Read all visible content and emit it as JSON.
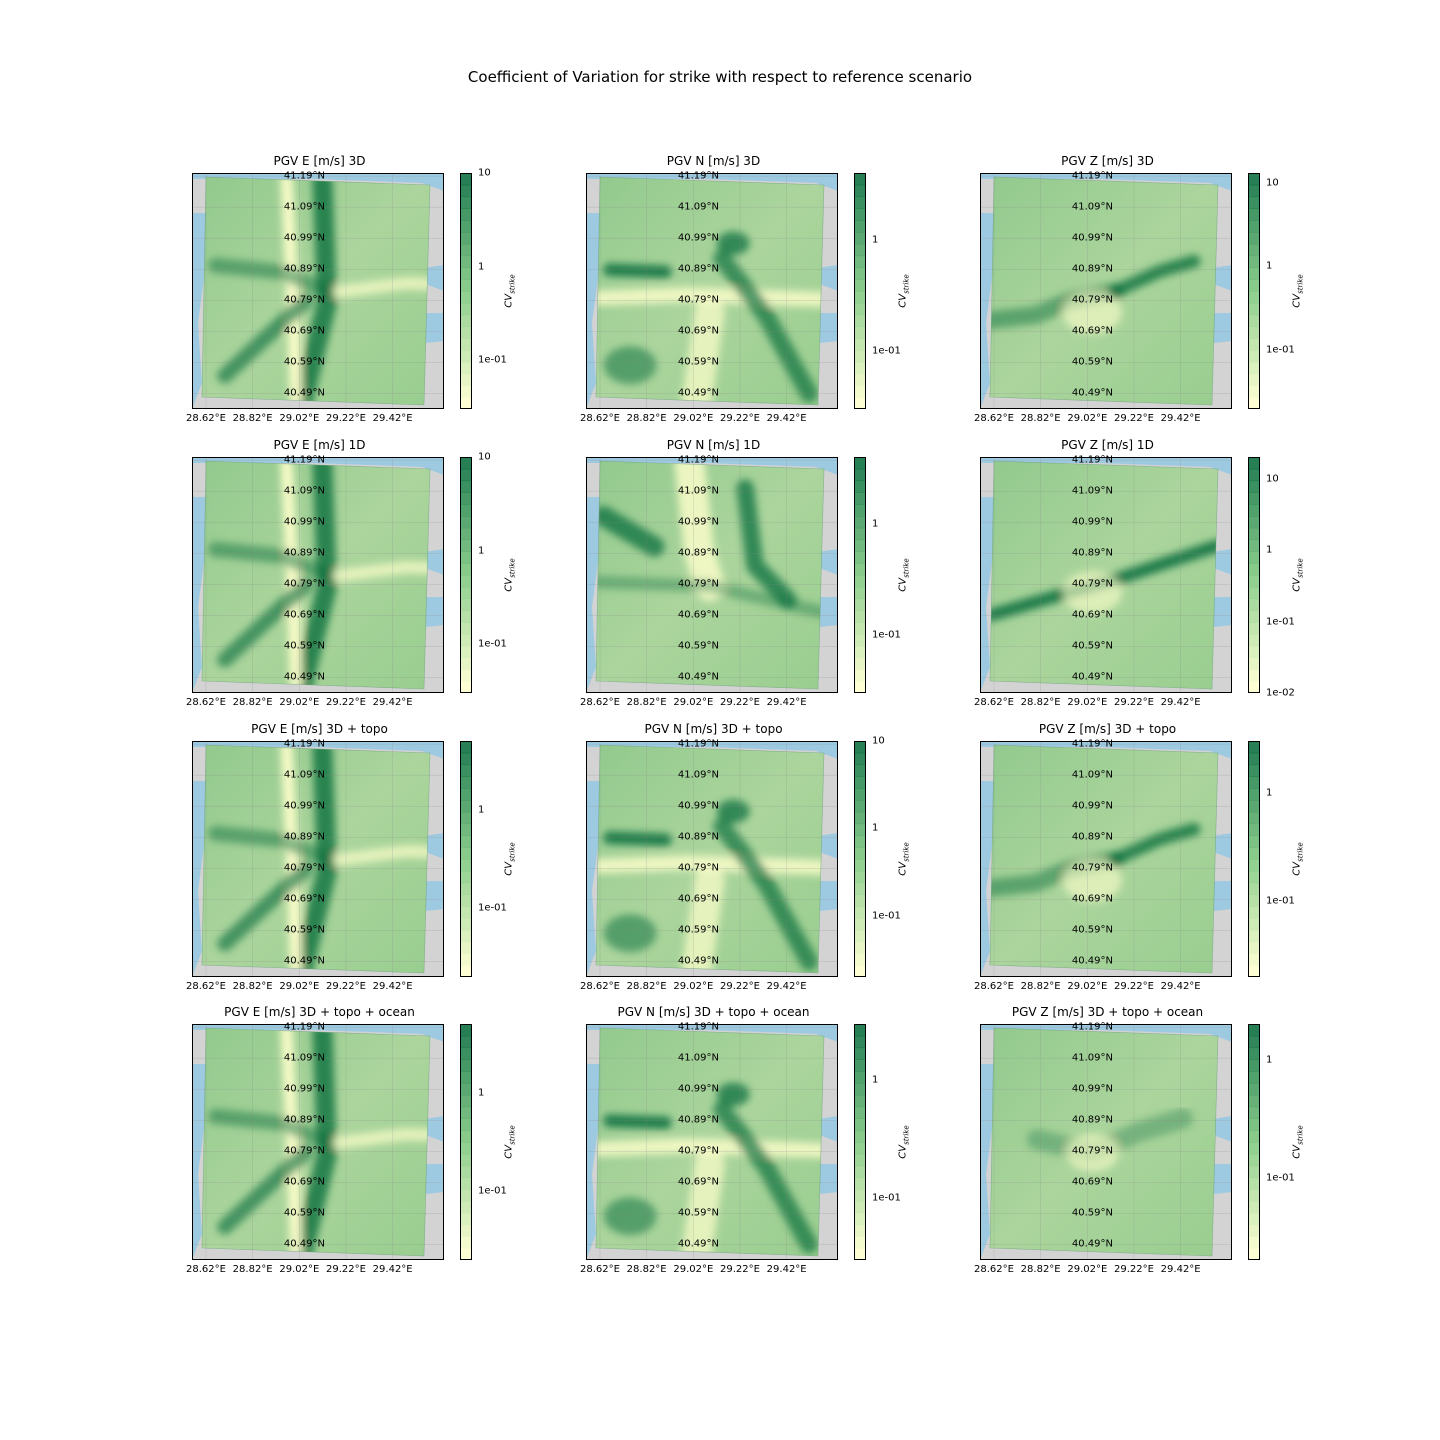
{
  "figure_title": "Coefficient of Variation for strike with respect to reference scenario",
  "colors": {
    "sea": "#9ecae1",
    "land": "#d3d3d3",
    "cmap_low": "#ffffcc",
    "cmap_mid": "#78c679",
    "cmap_high": "#006837"
  },
  "chart_data": [
    {
      "type": "heatmap",
      "title": "PGV E [m/s] 3D",
      "colorbar_label": "CV",
      "colorbar_sub": "strike",
      "colorbar_ticks": [
        "10",
        "1",
        "1e-01"
      ],
      "colorbar_tick_values": [
        10,
        1,
        0.1
      ],
      "colorbar_range": [
        0.03,
        10
      ],
      "pattern": "E"
    },
    {
      "type": "heatmap",
      "title": "PGV N [m/s] 3D",
      "colorbar_label": "CV",
      "colorbar_sub": "strike",
      "colorbar_ticks": [
        "1",
        "1e-01"
      ],
      "colorbar_tick_values": [
        1,
        0.1
      ],
      "colorbar_range": [
        0.03,
        4
      ],
      "pattern": "N"
    },
    {
      "type": "heatmap",
      "title": "PGV Z [m/s] 3D",
      "colorbar_label": "CV",
      "colorbar_sub": "strike",
      "colorbar_ticks": [
        "10",
        "1",
        "1e-01"
      ],
      "colorbar_tick_values": [
        10,
        1,
        0.1
      ],
      "colorbar_range": [
        0.02,
        13
      ],
      "pattern": "Z"
    },
    {
      "type": "heatmap",
      "title": "PGV E [m/s] 1D",
      "colorbar_label": "CV",
      "colorbar_sub": "strike",
      "colorbar_ticks": [
        "10",
        "1",
        "1e-01"
      ],
      "colorbar_tick_values": [
        10,
        1,
        0.1
      ],
      "colorbar_range": [
        0.03,
        10
      ],
      "pattern": "E"
    },
    {
      "type": "heatmap",
      "title": "PGV N [m/s] 1D",
      "colorbar_label": "CV",
      "colorbar_sub": "strike",
      "colorbar_ticks": [
        "1",
        "1e-01"
      ],
      "colorbar_tick_values": [
        1,
        0.1
      ],
      "colorbar_range": [
        0.03,
        4
      ],
      "pattern": "N1"
    },
    {
      "type": "heatmap",
      "title": "PGV Z [m/s] 1D",
      "colorbar_label": "CV",
      "colorbar_sub": "strike",
      "colorbar_ticks": [
        "10",
        "1",
        "1e-01",
        "1e-02"
      ],
      "colorbar_tick_values": [
        10,
        1,
        0.1,
        0.01
      ],
      "colorbar_range": [
        0.01,
        20
      ],
      "pattern": "Z1"
    },
    {
      "type": "heatmap",
      "title": "PGV E [m/s] 3D + topo",
      "colorbar_label": "CV",
      "colorbar_sub": "strike",
      "colorbar_ticks": [
        "1",
        "1e-01"
      ],
      "colorbar_tick_values": [
        1,
        0.1
      ],
      "colorbar_range": [
        0.02,
        5
      ],
      "pattern": "E"
    },
    {
      "type": "heatmap",
      "title": "PGV N [m/s] 3D + topo",
      "colorbar_label": "CV",
      "colorbar_sub": "strike",
      "colorbar_ticks": [
        "10",
        "1",
        "1e-01"
      ],
      "colorbar_tick_values": [
        10,
        1,
        0.1
      ],
      "colorbar_range": [
        0.02,
        10
      ],
      "pattern": "N"
    },
    {
      "type": "heatmap",
      "title": "PGV Z [m/s] 3D + topo",
      "colorbar_label": "CV",
      "colorbar_sub": "strike",
      "colorbar_ticks": [
        "1",
        "1e-01"
      ],
      "colorbar_tick_values": [
        1,
        0.1
      ],
      "colorbar_range": [
        0.02,
        3
      ],
      "pattern": "Z"
    },
    {
      "type": "heatmap",
      "title": "PGV E [m/s] 3D + topo + ocean",
      "colorbar_label": "CV",
      "colorbar_sub": "strike",
      "colorbar_ticks": [
        "1",
        "1e-01"
      ],
      "colorbar_tick_values": [
        1,
        0.1
      ],
      "colorbar_range": [
        0.02,
        5
      ],
      "pattern": "E"
    },
    {
      "type": "heatmap",
      "title": "PGV N [m/s] 3D + topo + ocean",
      "colorbar_label": "CV",
      "colorbar_sub": "strike",
      "colorbar_ticks": [
        "1",
        "1e-01"
      ],
      "colorbar_tick_values": [
        1,
        0.1
      ],
      "colorbar_range": [
        0.03,
        3
      ],
      "pattern": "N"
    },
    {
      "type": "heatmap",
      "title": "PGV Z [m/s] 3D + topo + ocean",
      "colorbar_label": "CV",
      "colorbar_sub": "strike",
      "colorbar_ticks": [
        "1",
        "1e-01"
      ],
      "colorbar_tick_values": [
        1,
        0.1
      ],
      "colorbar_range": [
        0.02,
        2
      ],
      "pattern": "Zo"
    }
  ],
  "axes": {
    "lat_ticks": [
      "41.19°N",
      "41.09°N",
      "40.99°N",
      "40.89°N",
      "40.79°N",
      "40.69°N",
      "40.59°N",
      "40.49°N"
    ],
    "lon_ticks": [
      "28.62°E",
      "28.82°E",
      "29.02°E",
      "29.22°E",
      "29.42°E"
    ],
    "lat_range": [
      40.44,
      41.2
    ],
    "lon_range": [
      28.56,
      29.64
    ]
  }
}
